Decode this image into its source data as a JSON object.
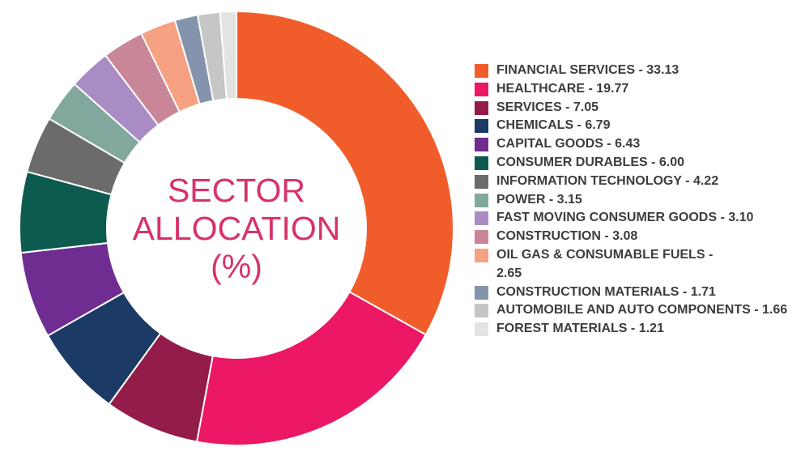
{
  "chart_data": {
    "type": "pie",
    "title_lines": [
      "SECTOR",
      "ALLOCATION",
      "(%)"
    ],
    "categories": [
      "FINANCIAL SERVICES",
      "HEALTHCARE",
      "SERVICES",
      "CHEMICALS",
      "CAPITAL GOODS",
      "CONSUMER DURABLES",
      "INFORMATION TECHNOLOGY",
      "POWER",
      "FAST MOVING CONSUMER GOODS",
      "CONSTRUCTION",
      "OIL GAS & CONSUMABLE FUELS",
      "CONSTRUCTION MATERIALS",
      "AUTOMOBILE AND AUTO COMPONENTS",
      "FOREST MATERIALS"
    ],
    "values": [
      33.13,
      19.77,
      7.05,
      6.79,
      6.43,
      6.0,
      4.22,
      3.15,
      3.1,
      3.08,
      2.65,
      1.71,
      1.66,
      1.21
    ],
    "value_labels": [
      "33.13",
      "19.77",
      "7.05",
      "6.79",
      "6.43",
      "6.00",
      "4.22",
      "3.15",
      "3.10",
      "3.08",
      "2.65",
      "1.71",
      "1.66",
      "1.21"
    ],
    "legend_labels": [
      "FINANCIAL SERVICES - 33.13",
      "HEALTHCARE - 19.77",
      "SERVICES - 7.05",
      "CHEMICALS - 6.79",
      "CAPITAL GOODS - 6.43",
      "CONSUMER DURABLES - 6.00",
      "INFORMATION TECHNOLOGY - 4.22",
      "POWER - 3.15",
      "FAST MOVING CONSUMER GOODS - 3.10",
      "CONSTRUCTION - 3.08",
      "OIL GAS & CONSUMABLE FUELS - 2.65",
      "CONSTRUCTION MATERIALS - 1.71",
      "AUTOMOBILE AND AUTO COMPONENTS - 1.66",
      "FOREST MATERIALS - 1.21"
    ],
    "colors": [
      "#f15d2a",
      "#ec1765",
      "#931c4b",
      "#1b3a66",
      "#6f2c91",
      "#0d5b4f",
      "#6b6b6b",
      "#82a89e",
      "#a98cc4",
      "#c98698",
      "#f7a183",
      "#8494ad",
      "#c6c6c6",
      "#e3e3e3"
    ],
    "donut": true,
    "legend_position": "right",
    "start_angle": "top",
    "direction": "clockwise"
  }
}
